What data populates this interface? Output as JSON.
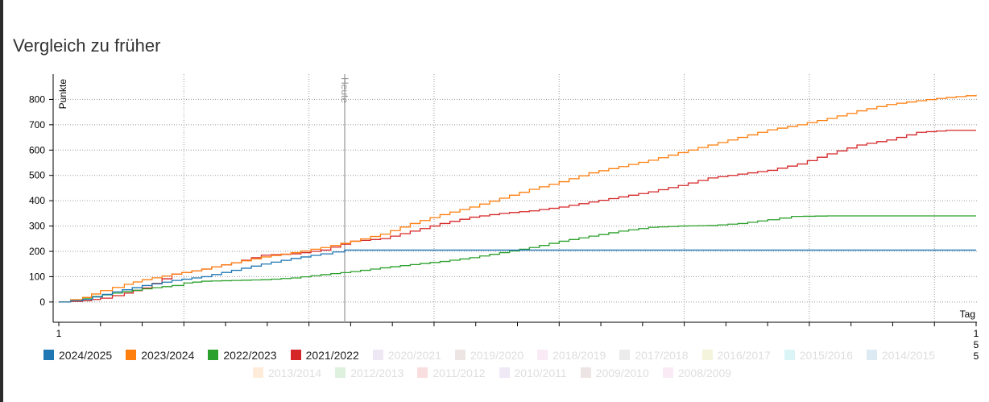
{
  "page": {
    "title": "Vergleich zu früher"
  },
  "chart_data": {
    "type": "line",
    "xlabel": "Tag",
    "ylabel": "Punkte",
    "xlim": [
      1,
      155
    ],
    "ylim": [
      -80,
      900
    ],
    "x_tick_labels": [
      "1",
      "155"
    ],
    "y_ticks": [
      0,
      100,
      200,
      300,
      400,
      500,
      600,
      700,
      800
    ],
    "today_marker": {
      "x": 49,
      "label": "Heute"
    },
    "grid": true,
    "legend_position": "bottom",
    "series": [
      {
        "name": "2024/2025",
        "color": "#1f77b4",
        "active": true,
        "points": [
          [
            1,
            0
          ],
          [
            5,
            10
          ],
          [
            10,
            40
          ],
          [
            15,
            65
          ],
          [
            20,
            85
          ],
          [
            25,
            100
          ],
          [
            30,
            125
          ],
          [
            35,
            150
          ],
          [
            40,
            172
          ],
          [
            45,
            190
          ],
          [
            49,
            205
          ],
          [
            155,
            205
          ]
        ]
      },
      {
        "name": "2023/2024",
        "color": "#ff7f0e",
        "active": true,
        "points": [
          [
            1,
            0
          ],
          [
            5,
            18
          ],
          [
            8,
            45
          ],
          [
            12,
            70
          ],
          [
            15,
            88
          ],
          [
            20,
            110
          ],
          [
            25,
            130
          ],
          [
            30,
            155
          ],
          [
            35,
            178
          ],
          [
            40,
            195
          ],
          [
            45,
            215
          ],
          [
            50,
            240
          ],
          [
            55,
            268
          ],
          [
            60,
            310
          ],
          [
            65,
            345
          ],
          [
            70,
            375
          ],
          [
            75,
            410
          ],
          [
            80,
            445
          ],
          [
            85,
            475
          ],
          [
            90,
            510
          ],
          [
            95,
            535
          ],
          [
            100,
            560
          ],
          [
            105,
            590
          ],
          [
            110,
            620
          ],
          [
            115,
            650
          ],
          [
            120,
            680
          ],
          [
            125,
            700
          ],
          [
            130,
            725
          ],
          [
            135,
            755
          ],
          [
            140,
            780
          ],
          [
            145,
            795
          ],
          [
            150,
            808
          ],
          [
            155,
            818
          ]
        ]
      },
      {
        "name": "2022/2023",
        "color": "#2ca02c",
        "active": true,
        "points": [
          [
            1,
            0
          ],
          [
            5,
            15
          ],
          [
            10,
            35
          ],
          [
            15,
            52
          ],
          [
            20,
            65
          ],
          [
            22,
            75
          ],
          [
            25,
            82
          ],
          [
            30,
            85
          ],
          [
            35,
            88
          ],
          [
            40,
            95
          ],
          [
            45,
            108
          ],
          [
            50,
            120
          ],
          [
            55,
            135
          ],
          [
            60,
            148
          ],
          [
            65,
            160
          ],
          [
            70,
            175
          ],
          [
            75,
            195
          ],
          [
            80,
            215
          ],
          [
            85,
            240
          ],
          [
            90,
            260
          ],
          [
            95,
            280
          ],
          [
            100,
            295
          ],
          [
            105,
            300
          ],
          [
            110,
            302
          ],
          [
            115,
            310
          ],
          [
            120,
            325
          ],
          [
            124,
            338
          ],
          [
            130,
            340
          ],
          [
            155,
            340
          ]
        ]
      },
      {
        "name": "2021/2022",
        "color": "#d62728",
        "active": true,
        "points": [
          [
            1,
            0
          ],
          [
            5,
            5
          ],
          [
            8,
            15
          ],
          [
            12,
            35
          ],
          [
            15,
            55
          ],
          [
            20,
            110
          ],
          [
            25,
            130
          ],
          [
            30,
            155
          ],
          [
            35,
            185
          ],
          [
            40,
            190
          ],
          [
            45,
            205
          ],
          [
            50,
            240
          ],
          [
            55,
            250
          ],
          [
            60,
            280
          ],
          [
            65,
            310
          ],
          [
            70,
            335
          ],
          [
            75,
            350
          ],
          [
            80,
            360
          ],
          [
            85,
            375
          ],
          [
            90,
            395
          ],
          [
            95,
            415
          ],
          [
            100,
            435
          ],
          [
            105,
            460
          ],
          [
            110,
            490
          ],
          [
            115,
            505
          ],
          [
            120,
            520
          ],
          [
            125,
            545
          ],
          [
            130,
            585
          ],
          [
            135,
            620
          ],
          [
            140,
            640
          ],
          [
            145,
            670
          ],
          [
            150,
            678
          ],
          [
            155,
            678
          ]
        ]
      },
      {
        "name": "2020/2021",
        "color": "#9467bd",
        "active": false
      },
      {
        "name": "2019/2020",
        "color": "#8c564b",
        "active": false
      },
      {
        "name": "2018/2019",
        "color": "#e377c2",
        "active": false
      },
      {
        "name": "2017/2018",
        "color": "#7f7f7f",
        "active": false
      },
      {
        "name": "2016/2017",
        "color": "#bcbd22",
        "active": false
      },
      {
        "name": "2015/2016",
        "color": "#17becf",
        "active": false
      },
      {
        "name": "2014/2015",
        "color": "#1f77b4",
        "active": false
      },
      {
        "name": "2013/2014",
        "color": "#ff7f0e",
        "active": false
      },
      {
        "name": "2012/2013",
        "color": "#2ca02c",
        "active": false
      },
      {
        "name": "2011/2012",
        "color": "#d62728",
        "active": false
      },
      {
        "name": "2010/2011",
        "color": "#9467bd",
        "active": false
      },
      {
        "name": "2009/2010",
        "color": "#8c564b",
        "active": false
      },
      {
        "name": "2008/2009",
        "color": "#e377c2",
        "active": false
      }
    ]
  }
}
